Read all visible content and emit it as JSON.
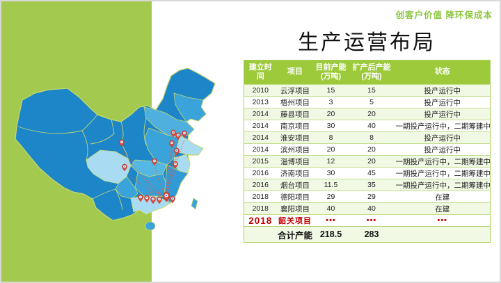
{
  "slide": {
    "tagline": "创客户价值 降环保成本",
    "title": "生产运营布局"
  },
  "colors": {
    "panel_green": "#a3c94e",
    "table_header_green": "#9cca3b",
    "tagline_green": "#8cc63f",
    "highlight_red": "#c00000",
    "map_dark_blue": "#1d86c8",
    "map_medium_blue": "#3aa3da",
    "map_light_blue": "#a9dcf2",
    "pin_red": "#d9473a"
  },
  "table": {
    "columns": [
      "建立时\n间",
      "项目",
      "目前产能\n(万吨)",
      "扩产后产能\n(万吨)",
      "状态"
    ],
    "rows": [
      {
        "year": "2010",
        "project": "云浮项目",
        "current": "15",
        "expanded": "15",
        "status": "投产运行中",
        "highlight": false
      },
      {
        "year": "2013",
        "project": "梧州项目",
        "current": "3",
        "expanded": "5",
        "status": "投产运行中",
        "highlight": false
      },
      {
        "year": "2014",
        "project": "藤县项目",
        "current": "20",
        "expanded": "20",
        "status": "投产运行中",
        "highlight": false
      },
      {
        "year": "2014",
        "project": "南京项目",
        "current": "30",
        "expanded": "40",
        "status": "一期投产运行中，二期筹建中",
        "highlight": false
      },
      {
        "year": "2014",
        "project": "淮安项目",
        "current": "8",
        "expanded": "8",
        "status": "投产运行中",
        "highlight": false
      },
      {
        "year": "2014",
        "project": "滨州项目",
        "current": "20",
        "expanded": "20",
        "status": "投产运行中",
        "highlight": false
      },
      {
        "year": "2015",
        "project": "淄博项目",
        "current": "12",
        "expanded": "20",
        "status": "一期投产运行中，二期筹建中",
        "highlight": false
      },
      {
        "year": "2016",
        "project": "济南项目",
        "current": "30",
        "expanded": "45",
        "status": "一期投产运行中，二期筹建中",
        "highlight": false
      },
      {
        "year": "2016",
        "project": "烟台项目",
        "current": "11.5",
        "expanded": "35",
        "status": "一期投产运行中，二期筹建中",
        "highlight": false
      },
      {
        "year": "2018",
        "project": "德阳项目",
        "current": "29",
        "expanded": "29",
        "status": "在建",
        "highlight": false
      },
      {
        "year": "2018",
        "project": "襄阳项目",
        "current": "40",
        "expanded": "40",
        "status": "在建",
        "highlight": false
      },
      {
        "year": "2018",
        "project": "韶关项目",
        "current": "•••",
        "expanded": "•••",
        "status": "•••",
        "highlight": true
      }
    ],
    "totals": {
      "label": "合计产能",
      "current": "218.5",
      "expanded": "283"
    }
  }
}
